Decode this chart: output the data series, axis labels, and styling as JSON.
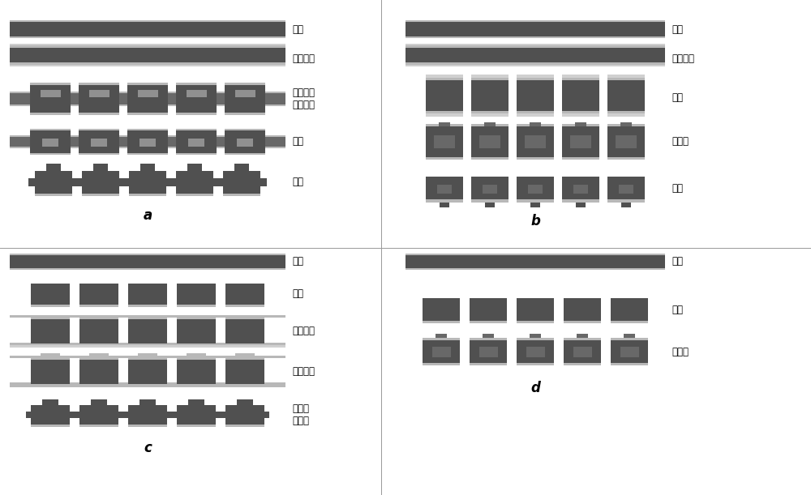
{
  "fig_w": 10.0,
  "fig_h": 6.11,
  "dpi": 100,
  "colors": {
    "dark": "#505050",
    "mid": "#686868",
    "light": "#909090",
    "lighter": "#aaaaaa",
    "silver": "#b8b8b8",
    "white_line": "#d0d0d0",
    "bg": "#ffffff"
  },
  "panels": {
    "a": {
      "label": "a",
      "rows": [
        "原板",
        "覆阻性膜",
        "图像转移\n并蚀刻环",
        "脱膜",
        "钻孔"
      ]
    },
    "b": {
      "label": "b",
      "rows": [
        "原板",
        "覆锡抗蚀",
        "钻孔",
        "蚀刻环",
        "脱锡"
      ]
    },
    "c": {
      "label": "c",
      "rows": [
        "原板",
        "钻孔",
        "覆光阻膜",
        "图像转移",
        "蚀刻环\n并脱膜"
      ]
    },
    "d": {
      "label": "d",
      "rows": [
        "原板",
        "钻孔",
        "蚀刻环"
      ]
    }
  }
}
